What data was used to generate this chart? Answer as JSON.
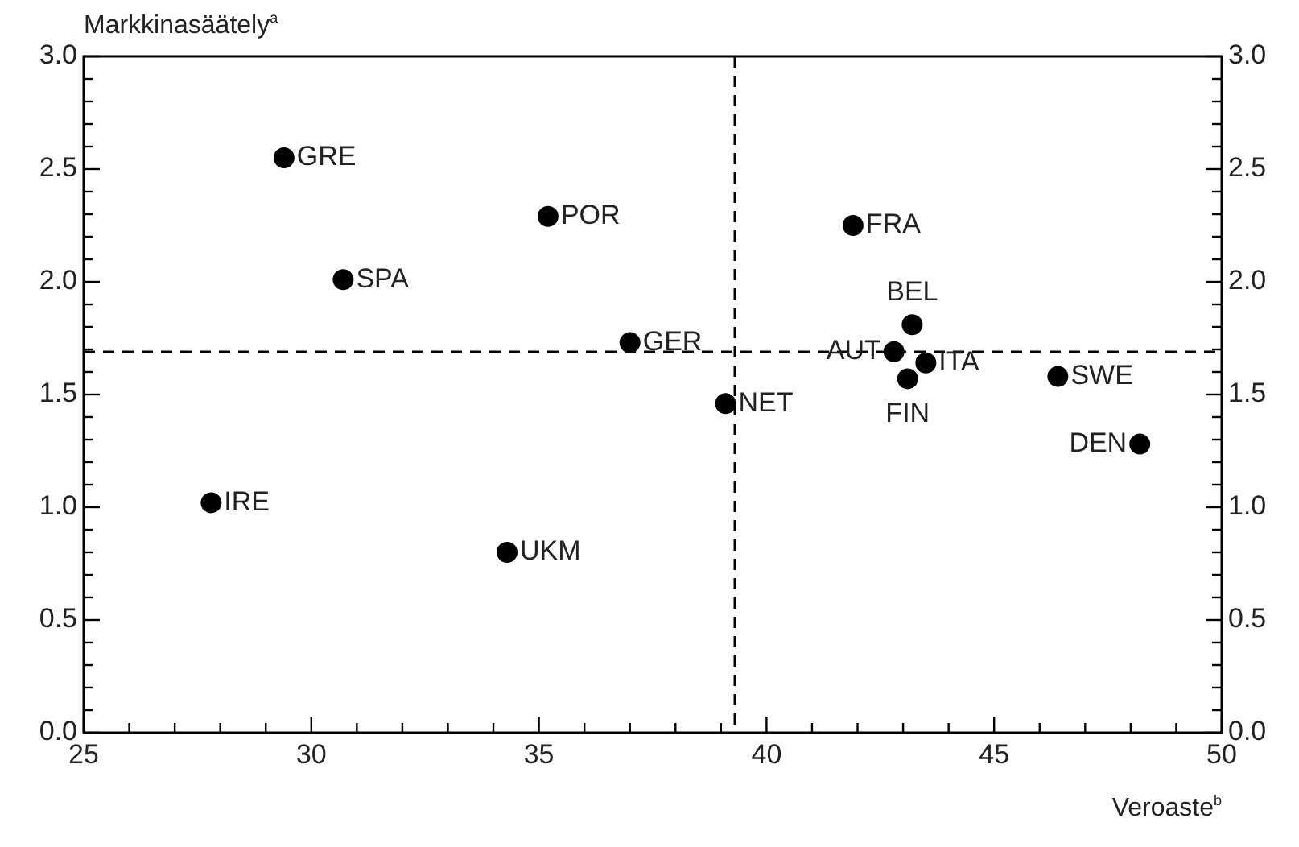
{
  "chart_data": {
    "type": "scatter",
    "xlabel": "Veroaste$^{b}$",
    "ylabel": "Markkinasäätely$^{a}$",
    "series": [
      {
        "color": "#000000",
        "x": [
          29.4,
          35.2,
          30.7,
          37.0,
          41.9,
          43.2,
          42.8,
          43.5,
          43.1,
          46.4,
          39.1,
          48.2,
          27.8,
          34.3
        ],
        "values": [
          2.55,
          2.29,
          2.01,
          1.73,
          2.25,
          1.81,
          1.69,
          1.64,
          1.57,
          1.58,
          1.46,
          1.28,
          1.02,
          0.8
        ]
      }
    ],
    "annotations": [
      {
        "text": "GRE",
        "x": 29.4,
        "y": 2.55
      },
      {
        "text": "POR",
        "x": 35.2,
        "y": 2.29
      },
      {
        "text": "SPA",
        "x": 30.7,
        "y": 2.01
      },
      {
        "text": "GER",
        "x": 37.0,
        "y": 1.73
      },
      {
        "text": "FRA",
        "x": 41.9,
        "y": 2.25
      },
      {
        "text": "BEL",
        "x": 43.2,
        "y": 1.81
      },
      {
        "text": "AUT",
        "x": 42.8,
        "y": 1.69
      },
      {
        "text": "ITA",
        "x": 43.5,
        "y": 1.64
      },
      {
        "text": "FIN",
        "x": 43.1,
        "y": 1.57
      },
      {
        "text": "SWE",
        "x": 46.4,
        "y": 1.58
      },
      {
        "text": "NET",
        "x": 39.1,
        "y": 1.46
      },
      {
        "text": "DEN",
        "x": 48.2,
        "y": 1.28
      },
      {
        "text": "IRE",
        "x": 27.8,
        "y": 1.02
      },
      {
        "text": "UKM",
        "x": 34.3,
        "y": 0.8
      }
    ],
    "ref_lines": [
      {
        "axis": "x",
        "value": 39.3,
        "line_style": "dashed"
      },
      {
        "axis": "y",
        "value": 1.69,
        "line_style": "dashed"
      }
    ],
    "xlim": [
      25,
      50
    ],
    "xticks": [
      25,
      {
        "value": 26,
        "label": null
      },
      {
        "value": 27,
        "label": null
      },
      {
        "value": 28,
        "label": null
      },
      {
        "value": 29,
        "label": null
      },
      30,
      {
        "value": 31,
        "label": null
      },
      {
        "value": 32,
        "label": null
      },
      {
        "value": 33,
        "label": null
      },
      {
        "value": 34,
        "label": null
      },
      35,
      {
        "value": 36,
        "label": null
      },
      {
        "value": 37,
        "label": null
      },
      {
        "value": 38,
        "label": null
      },
      {
        "value": 39,
        "label": null
      },
      40,
      {
        "value": 41,
        "label": null
      },
      {
        "value": 42,
        "label": null
      },
      {
        "value": 43,
        "label": null
      },
      {
        "value": 44,
        "label": null
      },
      45,
      {
        "value": 46,
        "label": null
      },
      {
        "value": 47,
        "label": null
      },
      {
        "value": 48,
        "label": null
      },
      {
        "value": 49,
        "label": null
      },
      50
    ],
    "ylim": [
      0,
      3
    ],
    "yticks": [
      {
        "value": 0,
        "label": "0.0"
      },
      {
        "value": 0.1,
        "label": null
      },
      {
        "value": 0.2,
        "label": null
      },
      {
        "value": 0.3,
        "label": null
      },
      {
        "value": 0.4,
        "label": null
      },
      {
        "value": 0.5,
        "label": "0.5"
      },
      {
        "value": 0.6,
        "label": null
      },
      {
        "value": 0.7,
        "label": null
      },
      {
        "value": 0.8,
        "label": null
      },
      {
        "value": 0.9,
        "label": null
      },
      {
        "value": 1,
        "label": "1.0"
      },
      {
        "value": 1.1,
        "label": null
      },
      {
        "value": 1.2,
        "label": null
      },
      {
        "value": 1.3,
        "label": null
      },
      {
        "value": 1.4,
        "label": null
      },
      {
        "value": 1.5,
        "label": "1.5"
      },
      {
        "value": 1.6,
        "label": null
      },
      {
        "value": 1.7,
        "label": null
      },
      {
        "value": 1.8,
        "label": null
      },
      {
        "value": 1.9,
        "label": null
      },
      {
        "value": 2,
        "label": "2.0"
      },
      {
        "value": 2.1,
        "label": null
      },
      {
        "value": 2.2,
        "label": null
      },
      {
        "value": 2.3,
        "label": null
      },
      {
        "value": 2.4,
        "label": null
      },
      {
        "value": 2.5,
        "label": "2.5"
      },
      {
        "value": 2.6,
        "label": null
      },
      {
        "value": 2.7,
        "label": null
      },
      {
        "value": 2.8,
        "label": null
      },
      {
        "value": 2.9,
        "label": null
      },
      {
        "value": 3,
        "label": "3.0"
      }
    ],
    "y2lim": [
      0,
      3
    ],
    "y2ticks": [
      {
        "value": 0,
        "label": "0.0"
      },
      {
        "value": 0.1,
        "label": null
      },
      {
        "value": 0.2,
        "label": null
      },
      {
        "value": 0.3,
        "label": null
      },
      {
        "value": 0.4,
        "label": null
      },
      {
        "value": 0.5,
        "label": "0.5"
      },
      {
        "value": 0.6,
        "label": null
      },
      {
        "value": 0.7,
        "label": null
      },
      {
        "value": 0.8,
        "label": null
      },
      {
        "value": 0.9,
        "label": null
      },
      {
        "value": 1,
        "label": "1.0"
      },
      {
        "value": 1.1,
        "label": null
      },
      {
        "value": 1.2,
        "label": null
      },
      {
        "value": 1.3,
        "label": null
      },
      {
        "value": 1.4,
        "label": null
      },
      {
        "value": 1.5,
        "label": "1.5"
      },
      {
        "value": 1.6,
        "label": null
      },
      {
        "value": 1.7,
        "label": null
      },
      {
        "value": 1.8,
        "label": null
      },
      {
        "value": 1.9,
        "label": null
      },
      {
        "value": 2,
        "label": "2.0"
      },
      {
        "value": 2.1,
        "label": null
      },
      {
        "value": 2.2,
        "label": null
      },
      {
        "value": 2.3,
        "label": null
      },
      {
        "value": 2.4,
        "label": null
      },
      {
        "value": 2.5,
        "label": "2.5"
      },
      {
        "value": 2.6,
        "label": null
      },
      {
        "value": 2.7,
        "label": null
      },
      {
        "value": 2.8,
        "label": null
      },
      {
        "value": 2.9,
        "label": null
      },
      {
        "value": 3,
        "label": "3.0"
      }
    ],
    "grid": false,
    "legend": false,
    "marker": "circle"
  }
}
